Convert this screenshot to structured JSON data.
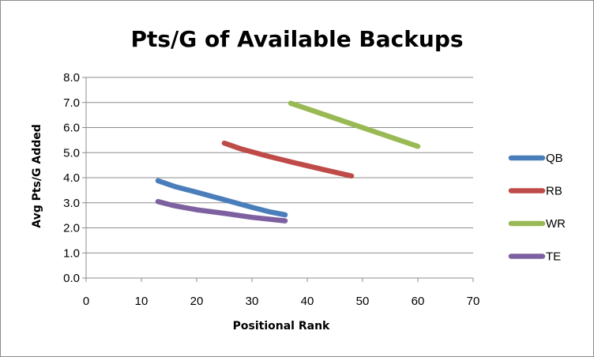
{
  "chart_data": {
    "type": "line",
    "title": "Pts/G of Available Backups",
    "xlabel": "Positional Rank",
    "ylabel": "Avg Pts/G Added",
    "xlim": [
      0,
      70
    ],
    "ylim": [
      0,
      8
    ],
    "x_ticks": [
      "0",
      "10",
      "20",
      "30",
      "40",
      "50",
      "60",
      "70"
    ],
    "y_ticks": [
      "0.0",
      "1.0",
      "2.0",
      "3.0",
      "4.0",
      "5.0",
      "6.0",
      "7.0",
      "8.0"
    ],
    "grid": "horizontal",
    "legend_position": "right",
    "series": [
      {
        "name": "QB",
        "color": "#4a7ebb",
        "x": [
          13,
          16,
          20,
          25,
          30,
          33,
          36
        ],
        "y": [
          3.88,
          3.65,
          3.42,
          3.12,
          2.82,
          2.65,
          2.52
        ]
      },
      {
        "name": "RB",
        "color": "#be4b48",
        "x": [
          25,
          28,
          33,
          38,
          43,
          48
        ],
        "y": [
          5.38,
          5.15,
          4.85,
          4.58,
          4.32,
          4.07
        ]
      },
      {
        "name": "WR",
        "color": "#98b954",
        "x": [
          37,
          42,
          47,
          52,
          56,
          60
        ],
        "y": [
          6.97,
          6.6,
          6.22,
          5.85,
          5.55,
          5.25
        ]
      },
      {
        "name": "TE",
        "color": "#7d60a0",
        "x": [
          13,
          16,
          20,
          25,
          30,
          36
        ],
        "y": [
          3.05,
          2.88,
          2.72,
          2.58,
          2.42,
          2.28
        ]
      }
    ]
  }
}
